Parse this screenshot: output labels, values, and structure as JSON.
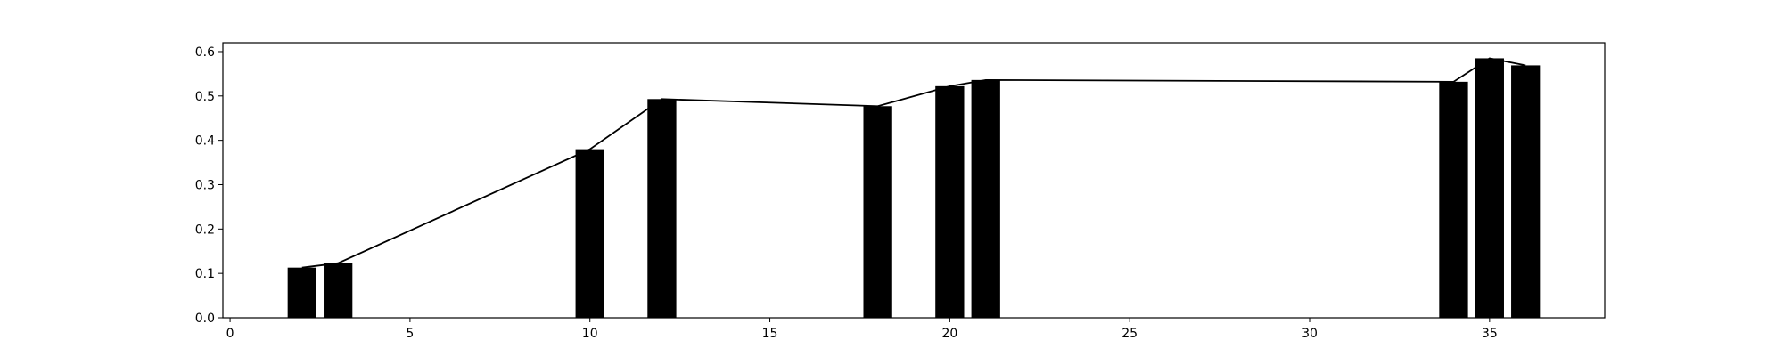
{
  "chart_data": {
    "type": "bar",
    "title": "",
    "xlabel": "",
    "ylabel": "",
    "xlim": [
      -0.2,
      38.2
    ],
    "ylim": [
      0,
      0.62
    ],
    "grid": false,
    "legend": null,
    "bar_width": 0.8,
    "x": [
      2,
      3,
      10,
      12,
      18,
      20,
      21,
      34,
      35,
      36
    ],
    "values": [
      0.113,
      0.123,
      0.38,
      0.493,
      0.477,
      0.522,
      0.536,
      0.532,
      0.585,
      0.569
    ],
    "line": {
      "x": [
        2,
        3,
        10,
        12,
        18,
        20,
        21,
        34,
        35,
        36
      ],
      "values": [
        0.113,
        0.123,
        0.38,
        0.493,
        0.477,
        0.522,
        0.536,
        0.532,
        0.585,
        0.569
      ]
    },
    "xticks": [
      0,
      5,
      10,
      15,
      20,
      25,
      30,
      35
    ],
    "xtick_labels": [
      "0",
      "5",
      "10",
      "15",
      "20",
      "25",
      "30",
      "35"
    ],
    "yticks": [
      0.0,
      0.1,
      0.2,
      0.3,
      0.4,
      0.5,
      0.6
    ],
    "ytick_labels": [
      "0.0",
      "0.1",
      "0.2",
      "0.3",
      "0.4",
      "0.5",
      "0.6"
    ],
    "colors": {
      "bar": "#000000",
      "line": "#000000",
      "axes": "#000000",
      "background": "#ffffff"
    }
  }
}
